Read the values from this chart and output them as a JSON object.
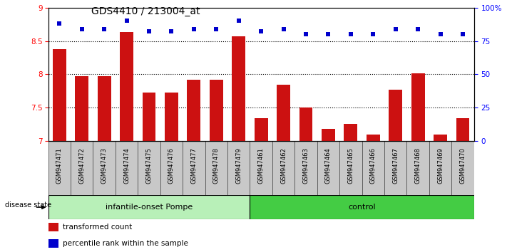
{
  "title": "GDS4410 / 213004_at",
  "samples": [
    "GSM947471",
    "GSM947472",
    "GSM947473",
    "GSM947474",
    "GSM947475",
    "GSM947476",
    "GSM947477",
    "GSM947478",
    "GSM947479",
    "GSM947461",
    "GSM947462",
    "GSM947463",
    "GSM947464",
    "GSM947465",
    "GSM947466",
    "GSM947467",
    "GSM947468",
    "GSM947469",
    "GSM947470"
  ],
  "transformed_count": [
    8.38,
    7.97,
    7.97,
    8.63,
    7.73,
    7.73,
    7.92,
    7.92,
    8.57,
    7.34,
    7.85,
    7.5,
    7.18,
    7.26,
    7.1,
    7.77,
    8.02,
    7.1,
    7.34
  ],
  "percentile_rank": [
    88,
    84,
    84,
    90,
    82,
    82,
    84,
    84,
    90,
    82,
    84,
    80,
    80,
    80,
    80,
    84,
    84,
    80,
    80
  ],
  "groups": [
    "infantile-onset Pompe",
    "control"
  ],
  "group_sizes": [
    9,
    10
  ],
  "group_colors_light": "#b8f0b8",
  "group_colors_dark": "#44cc44",
  "ylim_left": [
    7.0,
    9.0
  ],
  "ylim_right": [
    0,
    100
  ],
  "yticks_left": [
    7.0,
    7.5,
    8.0,
    8.5,
    9.0
  ],
  "yticks_right": [
    0,
    25,
    50,
    75,
    100
  ],
  "bar_color": "#cc1111",
  "dot_color": "#0000cc",
  "bar_width": 0.6,
  "legend_red_label": "transformed count",
  "legend_blue_label": "percentile rank within the sample",
  "tick_bg_color": "#c8c8c8",
  "tick_border_color": "#555555"
}
